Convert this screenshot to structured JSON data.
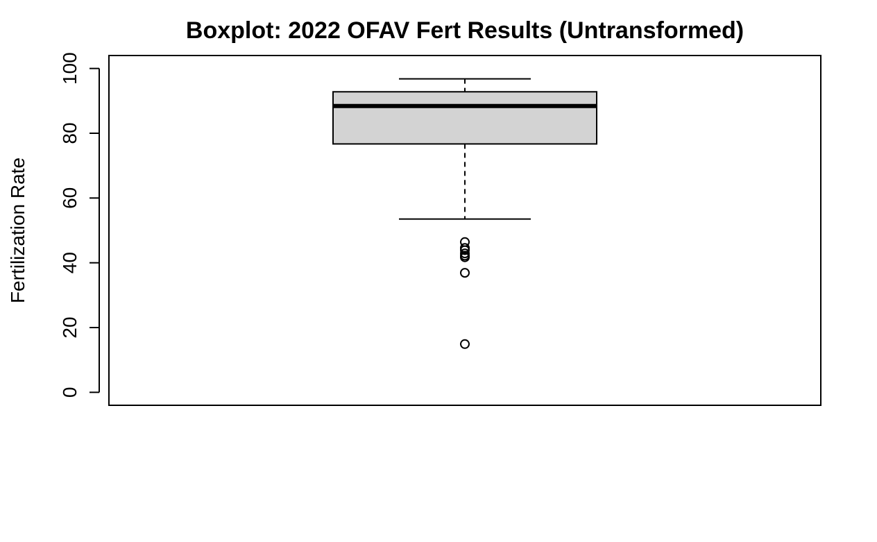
{
  "chart_data": {
    "type": "boxplot",
    "title": "Boxplot: 2022 OFAV Fert Results (Untransformed)",
    "xlabel": "",
    "ylabel": "Fertilization Rate",
    "ylim": [
      -4,
      104
    ],
    "yticks": [
      0,
      20,
      40,
      60,
      80,
      100
    ],
    "ytick_labels": [
      "0",
      "20",
      "40",
      "60",
      "80",
      "100"
    ],
    "grid": false,
    "legend": "none",
    "box": {
      "whisker_low": 53.5,
      "q1": 76.7,
      "median": 88.4,
      "q3": 92.8,
      "whisker_high": 96.8
    },
    "outliers": [
      46.4,
      44.6,
      43.9,
      42.9,
      42.2,
      41.7,
      36.9,
      14.9
    ],
    "colors": {
      "box_fill": "#d3d3d3",
      "stroke": "#000000"
    }
  }
}
